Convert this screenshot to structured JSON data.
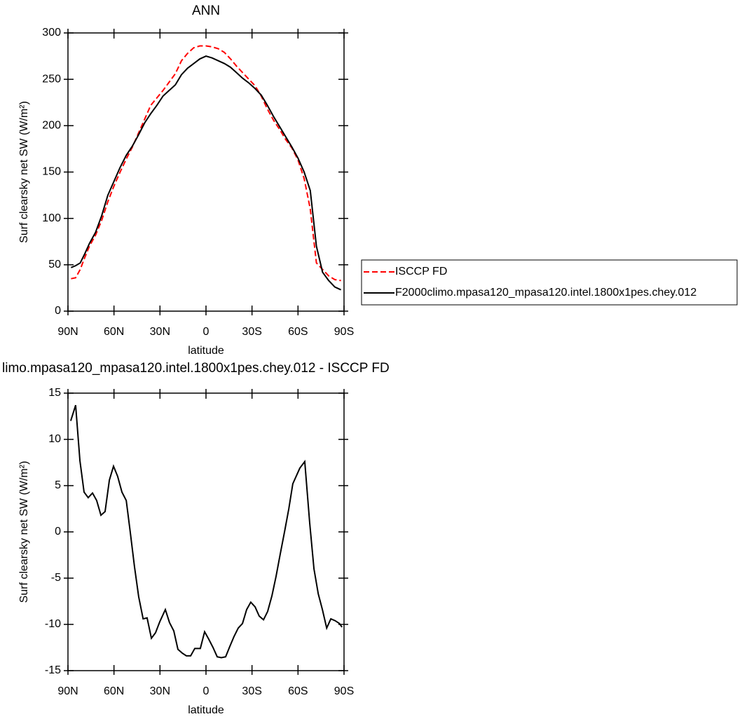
{
  "chart_data": [
    {
      "type": "line",
      "title": "ANN",
      "xlabel": "latitude",
      "ylabel": "Surf clearsky net SW (W/m²)",
      "x": [
        88,
        85,
        82,
        79,
        76,
        72,
        68,
        64,
        60,
        56,
        52,
        48,
        44,
        40,
        36,
        32,
        28,
        24,
        20,
        16,
        12,
        8,
        4,
        0,
        -4,
        -8,
        -12,
        -16,
        -20,
        -24,
        -28,
        -32,
        -36,
        -40,
        -44,
        -48,
        -52,
        -56,
        -60,
        -64,
        -68,
        -72,
        -76,
        -80,
        -84,
        -88
      ],
      "series": [
        {
          "name": "ISCCP FD",
          "color": "#ff0000",
          "dashed": true,
          "values": [
            35,
            36,
            45,
            58,
            70,
            82,
            98,
            118,
            135,
            150,
            164,
            177,
            192,
            207,
            222,
            230,
            238,
            247,
            256,
            270,
            278,
            284,
            286,
            286,
            285,
            283,
            279,
            272,
            264,
            257,
            250,
            243,
            232,
            218,
            206,
            196,
            185,
            176,
            163,
            143,
            110,
            52,
            45,
            38,
            34,
            33
          ]
        },
        {
          "name": "F2000climo.mpasa120_mpasa120.intel.1800x1pes.chey.012",
          "color": "#000000",
          "dashed": false,
          "values": [
            47,
            49,
            52,
            62,
            73,
            85,
            103,
            125,
            140,
            155,
            168,
            178,
            190,
            203,
            213,
            222,
            232,
            238,
            244,
            255,
            262,
            267,
            272,
            275,
            273,
            270,
            267,
            263,
            257,
            251,
            246,
            240,
            233,
            222,
            210,
            199,
            188,
            177,
            165,
            150,
            130,
            70,
            42,
            33,
            26,
            23
          ]
        }
      ],
      "xlim": [
        90,
        -90
      ],
      "xticks": [
        {
          "value": 90,
          "label": "90N"
        },
        {
          "value": 60,
          "label": "60N"
        },
        {
          "value": 30,
          "label": "30N"
        },
        0,
        {
          "value": -30,
          "label": "30S"
        },
        {
          "value": -60,
          "label": "60S"
        },
        {
          "value": -90,
          "label": "90S"
        }
      ],
      "ylim": [
        0,
        300
      ],
      "yticks": [
        0,
        50,
        100,
        150,
        200,
        250,
        300
      ],
      "legend": "right"
    },
    {
      "type": "line",
      "title": "limo.mpasa120_mpasa120.intel.1800x1pes.chey.012 - ISCCP FD",
      "xlabel": "latitude",
      "ylabel": "Surf clearsky net SW (W/m²)",
      "x": [
        88.2,
        85,
        82.2,
        79.5,
        76.8,
        74,
        71.3,
        68.5,
        65.8,
        63,
        60.3,
        57.6,
        54.8,
        52,
        49.4,
        46.6,
        43.9,
        41,
        38.4,
        35.6,
        32.9,
        30.1,
        26.5,
        23.8,
        21,
        18.3,
        15.5,
        12.8,
        10,
        7.3,
        3.7,
        0.9,
        -1.8,
        -4.6,
        -7.3,
        -10,
        -12.8,
        -15.5,
        -18.3,
        -21,
        -23.8,
        -26.5,
        -29.2,
        -32,
        -34.7,
        -37.5,
        -40.2,
        -43,
        -45.7,
        -48.4,
        -51.2,
        -54,
        -56.6,
        -61.2,
        -64.4,
        -67.6,
        -70.4,
        -73.2,
        -75.9,
        -78.7,
        -81.4,
        -84.2,
        -87,
        -88.7
      ],
      "series": [
        {
          "color": "#000000",
          "values": [
            12,
            13.7,
            7.7,
            4.3,
            3.7,
            4.2,
            3.4,
            1.8,
            2.2,
            5.6,
            7.1,
            6,
            4.3,
            3.4,
            0,
            -3.8,
            -7,
            -9.4,
            -9.3,
            -11.5,
            -10.9,
            -9.7,
            -8.4,
            -9.8,
            -10.7,
            -12.7,
            -13.1,
            -13.4,
            -13.4,
            -12.6,
            -12.6,
            -10.8,
            -11.6,
            -12.5,
            -13.5,
            -13.6,
            -13.5,
            -12.4,
            -11.3,
            -10.4,
            -9.9,
            -8.4,
            -7.6,
            -8.1,
            -9.1,
            -9.5,
            -8.6,
            -6.9,
            -4.8,
            -2.4,
            0,
            2.5,
            5.2,
            6.9,
            7.6,
            1,
            -4,
            -6.7,
            -8.4,
            -10.4,
            -9.4,
            -9.6,
            -9.9,
            -10.3
          ]
        }
      ],
      "xlim": [
        90,
        -90
      ],
      "xticks": [
        {
          "value": 90,
          "label": "90N"
        },
        {
          "value": 60,
          "label": "60N"
        },
        {
          "value": 30,
          "label": "30N"
        },
        0,
        {
          "value": -30,
          "label": "30S"
        },
        {
          "value": -60,
          "label": "60S"
        },
        {
          "value": -90,
          "label": "90S"
        }
      ],
      "ylim": [
        -15,
        15
      ],
      "yticks": [
        -15,
        -10,
        -5,
        0,
        5,
        10,
        15
      ]
    }
  ]
}
